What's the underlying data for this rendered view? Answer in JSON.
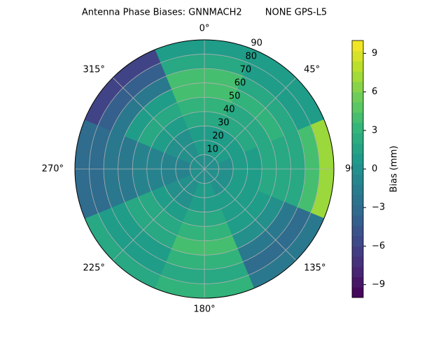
{
  "chart_data": {
    "type": "polar_contour",
    "title": "Antenna Phase Biases: GNNMACH2        NONE GPS-L5",
    "thetaticks": [
      {
        "value": 0,
        "label": "0°"
      },
      {
        "value": 45,
        "label": "45°"
      },
      {
        "value": 90,
        "label": "90°"
      },
      {
        "value": 135,
        "label": "135°"
      },
      {
        "value": 180,
        "label": "180°"
      },
      {
        "value": 225,
        "label": "225°"
      },
      {
        "value": 270,
        "label": "270°"
      },
      {
        "value": 315,
        "label": "315°"
      }
    ],
    "rlim": [
      0,
      90
    ],
    "rticks": [
      10,
      20,
      30,
      40,
      50,
      60,
      70,
      80,
      90
    ],
    "values": [
      [
        0,
        1,
        1,
        2,
        3,
        4,
        4,
        2,
        1
      ],
      [
        0,
        1,
        1,
        2,
        2,
        3,
        2,
        1,
        1
      ],
      [
        0,
        0,
        1,
        1,
        2,
        2,
        2,
        4,
        7
      ],
      [
        0,
        0,
        1,
        1,
        1,
        0,
        -2,
        -3,
        -2
      ],
      [
        0,
        1,
        1,
        2,
        3,
        4,
        3,
        2,
        3
      ],
      [
        0,
        0,
        0,
        1,
        2,
        2,
        1,
        1,
        2
      ],
      [
        0,
        -1,
        -1,
        -1,
        -1,
        -2,
        -2,
        -3,
        -3
      ],
      [
        0,
        0,
        0,
        1,
        2,
        1,
        -2,
        -4,
        -6
      ]
    ],
    "colorbar": {
      "label": "Bias (mm)",
      "clim": [
        -10,
        10
      ],
      "ticks": [
        {
          "value": -9,
          "label": "−9"
        },
        {
          "value": -6,
          "label": "−6"
        },
        {
          "value": -3,
          "label": "−3"
        },
        0,
        3,
        6,
        9
      ]
    },
    "grid": true,
    "colormap": "viridis"
  }
}
